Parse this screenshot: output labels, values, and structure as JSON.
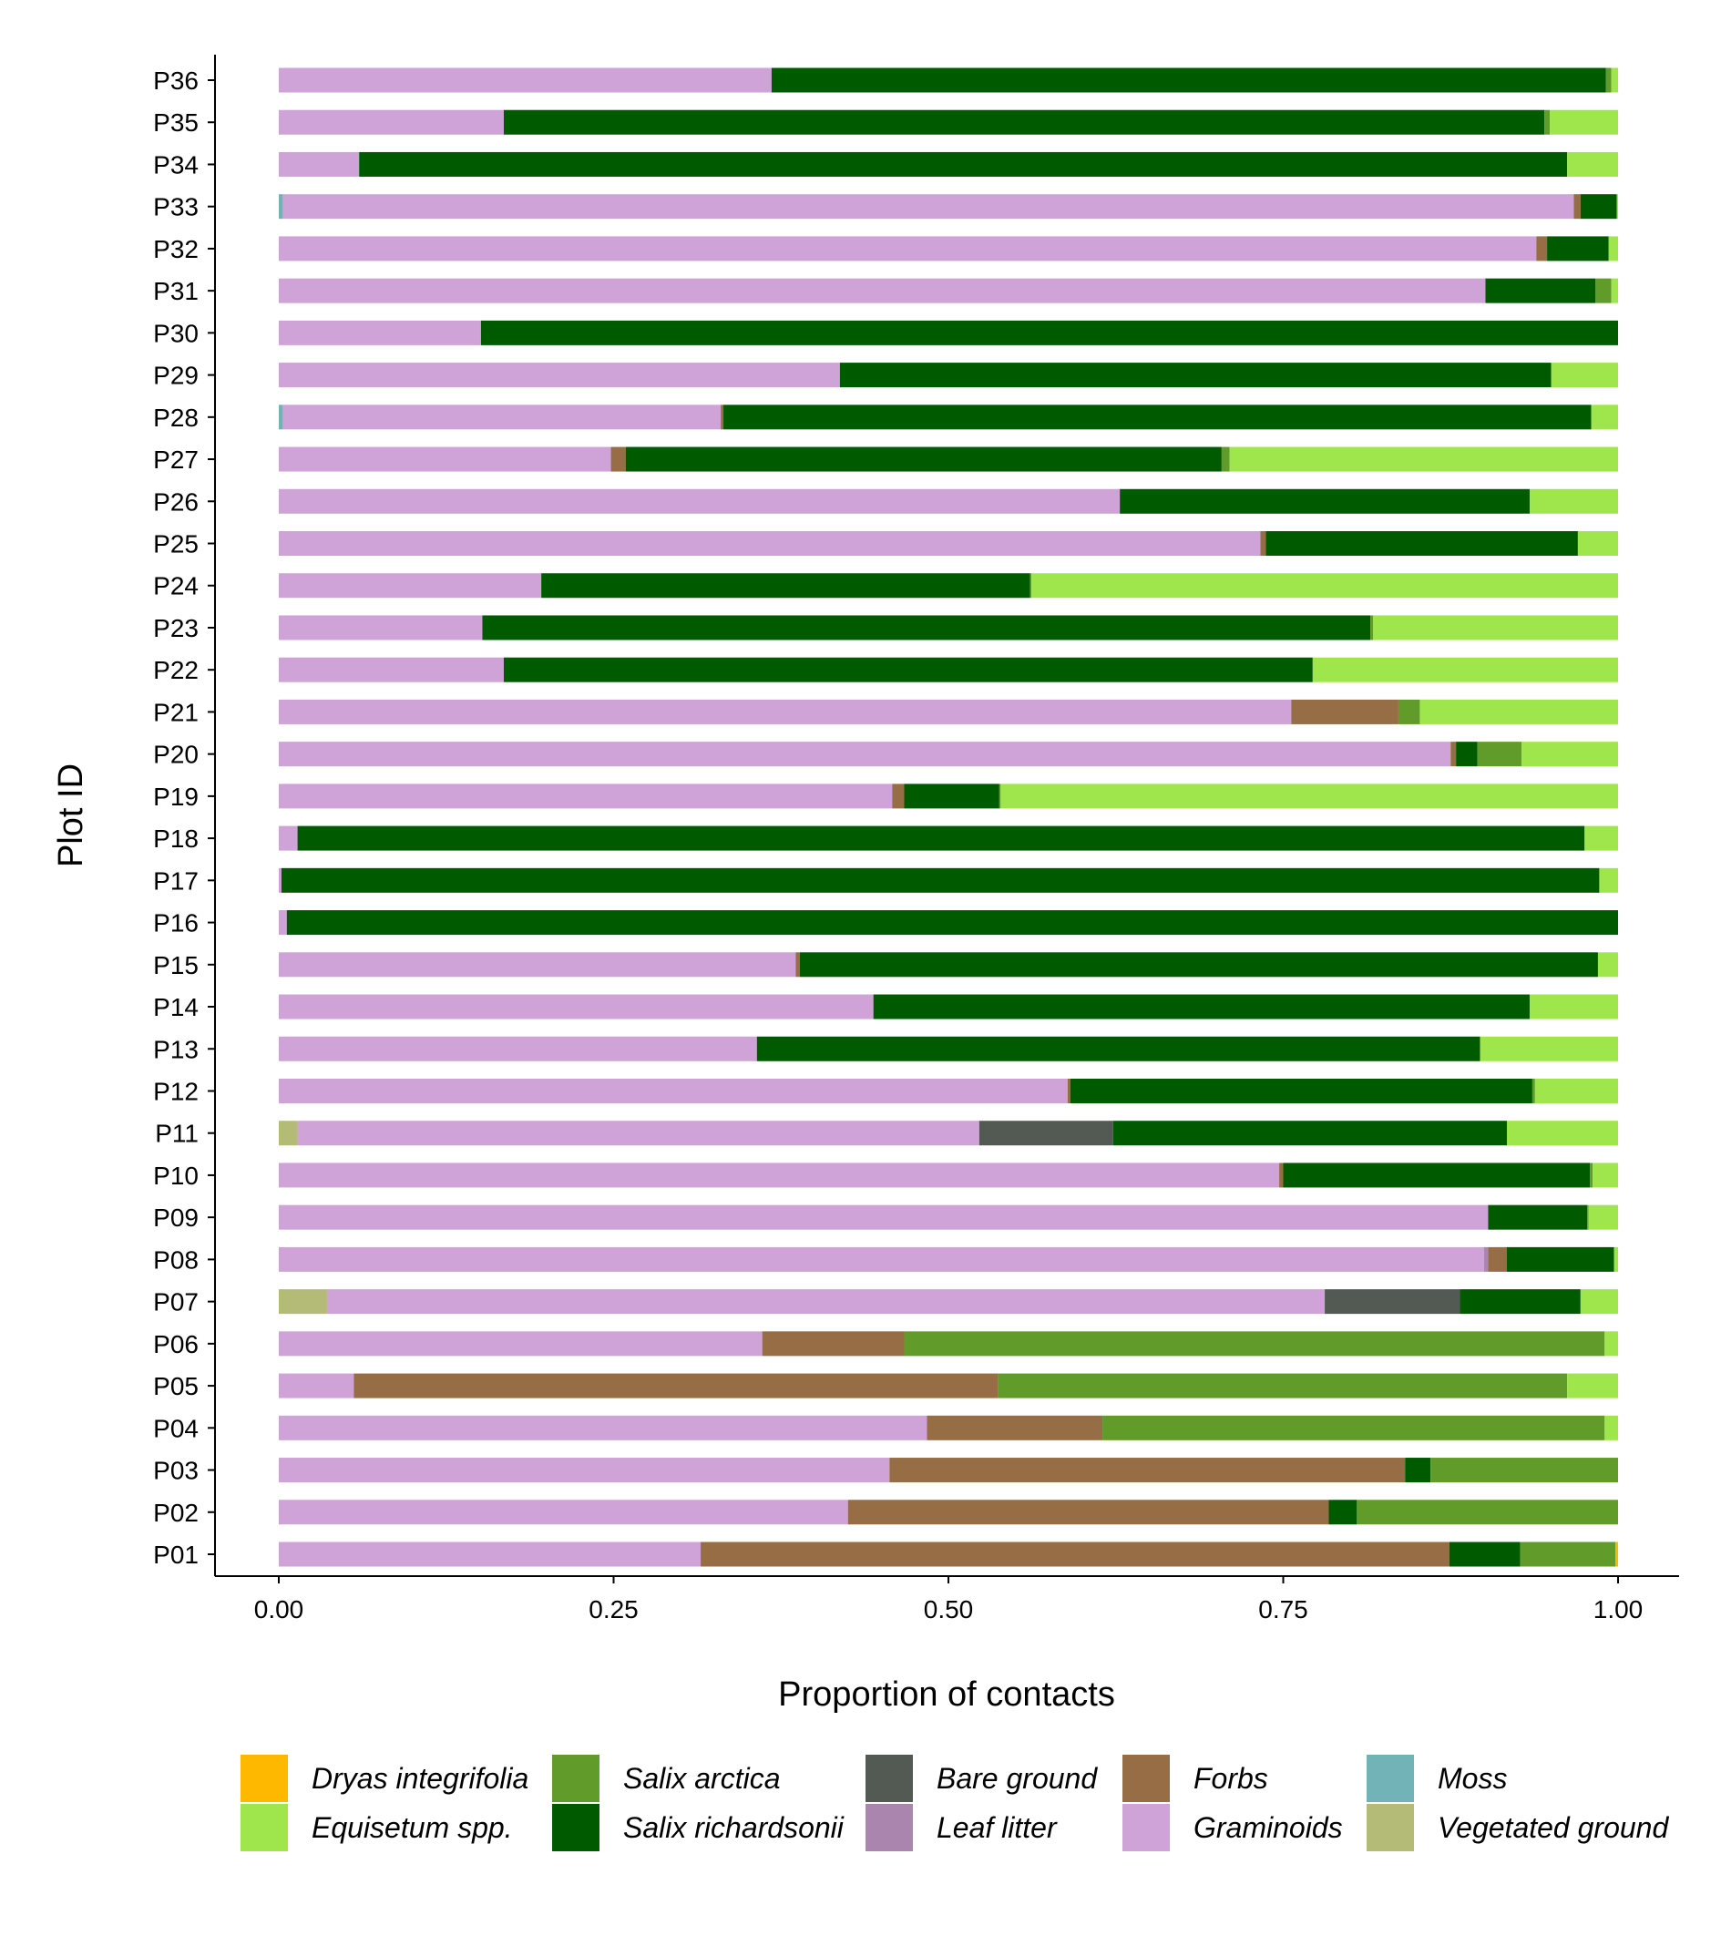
{
  "chart_data": {
    "type": "bar",
    "orientation": "horizontal",
    "stacked": true,
    "xlabel": "Proportion of contacts",
    "ylabel": "Plot ID",
    "xlim": [
      0,
      1
    ],
    "xticks": [
      "0.00",
      "0.25",
      "0.50",
      "0.75",
      "1.00"
    ],
    "grid": false,
    "legend_position": "bottom",
    "categories": [
      "P36",
      "P35",
      "P34",
      "P33",
      "P32",
      "P31",
      "P30",
      "P29",
      "P28",
      "P27",
      "P26",
      "P25",
      "P24",
      "P23",
      "P22",
      "P21",
      "P20",
      "P19",
      "P18",
      "P17",
      "P16",
      "P15",
      "P14",
      "P13",
      "P12",
      "P11",
      "P10",
      "P09",
      "P08",
      "P07",
      "P06",
      "P05",
      "P04",
      "P03",
      "P02",
      "P01"
    ],
    "stack_order": [
      "Vegetated ground",
      "Moss",
      "Graminoids",
      "Leaf litter",
      "Forbs",
      "Bare ground",
      "Salix richardsonii",
      "Salix arctica",
      "Equisetum spp.",
      "Dryas integrifolia"
    ],
    "legend": [
      {
        "name": "Dryas integrifolia",
        "color": "#FFB800",
        "italic": true
      },
      {
        "name": "Equisetum spp.",
        "color": "#9FE64D",
        "italic": true
      },
      {
        "name": "Salix arctica",
        "color": "#619C2A",
        "italic": true
      },
      {
        "name": "Salix richardsonii",
        "color": "#005A00",
        "italic": true
      },
      {
        "name": "Bare ground",
        "color": "#535A53",
        "italic": true
      },
      {
        "name": "Leaf litter",
        "color": "#AA86AE",
        "italic": true
      },
      {
        "name": "Forbs",
        "color": "#966D44",
        "italic": true
      },
      {
        "name": "Graminoids",
        "color": "#CFA2D8",
        "italic": true
      },
      {
        "name": "Moss",
        "color": "#72B3B7",
        "italic": true
      },
      {
        "name": "Vegetated ground",
        "color": "#B3BB77",
        "italic": true
      }
    ],
    "series": [
      {
        "name": "Vegetated ground",
        "values": [
          0,
          0,
          0,
          0,
          0,
          0,
          0,
          0,
          0,
          0,
          0,
          0,
          0,
          0,
          0,
          0,
          0,
          0,
          0,
          0,
          0,
          0,
          0,
          0,
          0,
          0.014,
          0,
          0,
          0,
          0.036,
          0,
          0,
          0,
          0,
          0,
          0
        ]
      },
      {
        "name": "Moss",
        "values": [
          0,
          0,
          0,
          0.003,
          0,
          0,
          0,
          0,
          0.003,
          0,
          0,
          0,
          0,
          0,
          0,
          0,
          0,
          0,
          0,
          0,
          0,
          0,
          0,
          0,
          0,
          0,
          0,
          0,
          0,
          0,
          0,
          0,
          0,
          0,
          0,
          0
        ]
      },
      {
        "name": "Graminoids",
        "values": [
          0.368,
          0.168,
          0.06,
          0.964,
          0.939,
          0.901,
          0.151,
          0.419,
          0.327,
          0.248,
          0.628,
          0.733,
          0.196,
          0.152,
          0.168,
          0.756,
          0.875,
          0.458,
          0.014,
          0.002,
          0.006,
          0.386,
          0.444,
          0.357,
          0.589,
          0.509,
          0.747,
          0.903,
          0.9,
          0.745,
          0.361,
          0.056,
          0.484,
          0.456,
          0.425,
          0.315
        ]
      },
      {
        "name": "Leaf litter",
        "values": [
          0,
          0,
          0,
          0,
          0,
          0,
          0,
          0,
          0,
          0,
          0,
          0,
          0,
          0,
          0,
          0,
          0,
          0,
          0,
          0,
          0,
          0,
          0,
          0,
          0,
          0,
          0,
          0,
          0.003,
          0,
          0,
          0,
          0,
          0,
          0,
          0
        ]
      },
      {
        "name": "Forbs",
        "values": [
          0,
          0,
          0,
          0.005,
          0.008,
          0,
          0,
          0,
          0.002,
          0.011,
          0,
          0.004,
          0,
          0,
          0,
          0.08,
          0.004,
          0.009,
          0,
          0,
          0,
          0.003,
          0,
          0,
          0.002,
          0,
          0.003,
          0,
          0.014,
          0,
          0.106,
          0.481,
          0.131,
          0.385,
          0.359,
          0.559
        ]
      },
      {
        "name": "Bare ground",
        "values": [
          0,
          0,
          0,
          0,
          0,
          0,
          0,
          0,
          0,
          0,
          0,
          0,
          0,
          0,
          0,
          0,
          0,
          0,
          0,
          0,
          0,
          0,
          0,
          0,
          0,
          0.1,
          0,
          0,
          0,
          0.101,
          0,
          0,
          0,
          0,
          0,
          0
        ]
      },
      {
        "name": "Salix richardsonii",
        "values": [
          0.623,
          0.777,
          0.902,
          0.027,
          0.046,
          0.082,
          0.849,
          0.531,
          0.648,
          0.445,
          0.306,
          0.233,
          0.365,
          0.663,
          0.604,
          0,
          0.016,
          0.071,
          0.961,
          0.984,
          0.994,
          0.596,
          0.49,
          0.54,
          0.345,
          0.294,
          0.229,
          0.074,
          0.08,
          0.09,
          0,
          0,
          0,
          0.019,
          0.021,
          0.053
        ]
      },
      {
        "name": "Salix arctica",
        "values": [
          0.004,
          0.004,
          0,
          0,
          0,
          0.012,
          0,
          0,
          0,
          0.006,
          0,
          0,
          0.001,
          0.002,
          0,
          0.016,
          0.033,
          0.001,
          0,
          0,
          0,
          0,
          0,
          0,
          0.002,
          0,
          0.002,
          0.001,
          0,
          0,
          0.523,
          0.425,
          0.375,
          0.14,
          0.195,
          0.071
        ]
      },
      {
        "name": "Equisetum spp.",
        "values": [
          0.005,
          0.051,
          0.038,
          0.001,
          0.007,
          0.005,
          0,
          0.05,
          0.02,
          0.29,
          0.066,
          0.03,
          0.438,
          0.183,
          0.228,
          0.148,
          0.072,
          0.461,
          0.025,
          0.014,
          0,
          0.015,
          0.066,
          0.103,
          0.062,
          0.083,
          0.019,
          0.022,
          0.003,
          0.028,
          0.01,
          0.038,
          0.01,
          0,
          0,
          0
        ]
      },
      {
        "name": "Dryas integrifolia",
        "values": [
          0,
          0,
          0,
          0,
          0,
          0,
          0,
          0,
          0,
          0,
          0,
          0,
          0,
          0,
          0,
          0,
          0,
          0,
          0,
          0,
          0,
          0,
          0,
          0,
          0,
          0,
          0,
          0,
          0,
          0,
          0,
          0,
          0,
          0,
          0,
          0.002
        ]
      }
    ]
  }
}
